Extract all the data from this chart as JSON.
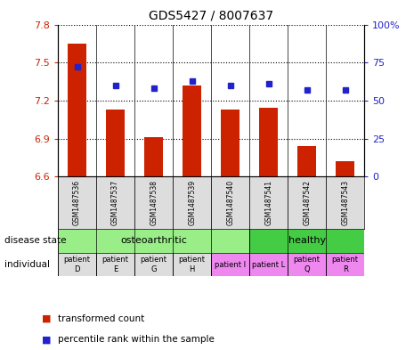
{
  "title": "GDS5427 / 8007637",
  "samples": [
    "GSM1487536",
    "GSM1487537",
    "GSM1487538",
    "GSM1487539",
    "GSM1487540",
    "GSM1487541",
    "GSM1487542",
    "GSM1487543"
  ],
  "bar_values": [
    7.65,
    7.13,
    6.91,
    7.32,
    7.13,
    7.14,
    6.84,
    6.72
  ],
  "dot_values": [
    72,
    60,
    58,
    63,
    60,
    61,
    57,
    57
  ],
  "bar_color": "#cc2200",
  "dot_color": "#2222cc",
  "ymin": 6.6,
  "ymax": 7.8,
  "yticks": [
    6.6,
    6.9,
    7.2,
    7.5,
    7.8
  ],
  "ytick_labels": [
    "6.6",
    "6.9",
    "7.2",
    "7.5",
    "7.8"
  ],
  "y2min": 0,
  "y2max": 100,
  "y2ticks": [
    0,
    25,
    50,
    75,
    100
  ],
  "y2tick_labels": [
    "0",
    "25",
    "50",
    "75",
    "100%"
  ],
  "disease_state_groups": [
    {
      "label": "osteoarthritic",
      "start": 0,
      "end": 4,
      "color": "#99ee88"
    },
    {
      "label": "healthy",
      "start": 5,
      "end": 7,
      "color": "#44cc44"
    }
  ],
  "individual_groups": [
    {
      "label": "patient\nD",
      "start": 0,
      "end": 0,
      "color": "#dddddd"
    },
    {
      "label": "patient\nE",
      "start": 1,
      "end": 1,
      "color": "#dddddd"
    },
    {
      "label": "patient\nG",
      "start": 2,
      "end": 2,
      "color": "#dddddd"
    },
    {
      "label": "patient\nH",
      "start": 3,
      "end": 3,
      "color": "#dddddd"
    },
    {
      "label": "patient I",
      "start": 4,
      "end": 4,
      "color": "#ee88ee"
    },
    {
      "label": "patient L",
      "start": 5,
      "end": 5,
      "color": "#ee88ee"
    },
    {
      "label": "patient\nQ",
      "start": 6,
      "end": 6,
      "color": "#ee88ee"
    },
    {
      "label": "patient\nR",
      "start": 7,
      "end": 7,
      "color": "#ee88ee"
    }
  ],
  "legend_items": [
    {
      "label": "transformed count",
      "color": "#cc2200",
      "marker": "s"
    },
    {
      "label": "percentile rank within the sample",
      "color": "#2222cc",
      "marker": "s"
    }
  ],
  "row_labels": [
    "disease state",
    "individual"
  ],
  "bar_width": 0.5,
  "grid_color": "black",
  "grid_linestyle": "dotted"
}
